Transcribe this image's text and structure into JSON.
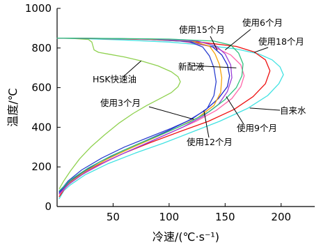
{
  "chart_data": {
    "type": "line",
    "title": "",
    "xlabel": "冷速/(℃·s⁻¹)",
    "ylabel": "温度/℃",
    "xlim": [
      0,
      230
    ],
    "ylim": [
      0,
      1000
    ],
    "x_ticks": [
      "50",
      "100",
      "150",
      "200"
    ],
    "y_ticks": [
      "0",
      "200",
      "400",
      "600",
      "800",
      "1000"
    ],
    "grid": false,
    "series": [
      {
        "name": "HSK快速油",
        "color": "#8fd14f",
        "points": [
          [
            2,
            90
          ],
          [
            6,
            130
          ],
          [
            12,
            180
          ],
          [
            20,
            240
          ],
          [
            30,
            300
          ],
          [
            42,
            360
          ],
          [
            55,
            420
          ],
          [
            68,
            470
          ],
          [
            80,
            510
          ],
          [
            92,
            545
          ],
          [
            102,
            575
          ],
          [
            108,
            605
          ],
          [
            110,
            630
          ],
          [
            108,
            655
          ],
          [
            102,
            680
          ],
          [
            90,
            710
          ],
          [
            75,
            735
          ],
          [
            60,
            755
          ],
          [
            45,
            770
          ],
          [
            37,
            778
          ],
          [
            33,
            790
          ],
          [
            32,
            810
          ],
          [
            31,
            830
          ],
          [
            28,
            843
          ],
          [
            15,
            848
          ],
          [
            0,
            850
          ]
        ]
      },
      {
        "name": "自来水",
        "color": "#41e2e2",
        "points": [
          [
            2,
            40
          ],
          [
            6,
            80
          ],
          [
            12,
            110
          ],
          [
            25,
            160
          ],
          [
            45,
            215
          ],
          [
            70,
            270
          ],
          [
            95,
            320
          ],
          [
            120,
            375
          ],
          [
            145,
            430
          ],
          [
            170,
            495
          ],
          [
            188,
            560
          ],
          [
            198,
            620
          ],
          [
            202,
            665
          ],
          [
            199,
            705
          ],
          [
            192,
            740
          ],
          [
            180,
            770
          ],
          [
            160,
            795
          ],
          [
            130,
            815
          ],
          [
            100,
            830
          ],
          [
            60,
            840
          ],
          [
            30,
            846
          ],
          [
            0,
            850
          ]
        ]
      },
      {
        "name": "使用18个月",
        "color": "#ee1111",
        "points": [
          [
            2,
            50
          ],
          [
            8,
            100
          ],
          [
            18,
            150
          ],
          [
            35,
            205
          ],
          [
            58,
            265
          ],
          [
            82,
            320
          ],
          [
            108,
            375
          ],
          [
            135,
            430
          ],
          [
            158,
            490
          ],
          [
            175,
            555
          ],
          [
            186,
            620
          ],
          [
            190,
            685
          ],
          [
            186,
            740
          ],
          [
            176,
            780
          ],
          [
            160,
            808
          ],
          [
            130,
            828
          ],
          [
            100,
            840
          ],
          [
            60,
            845
          ],
          [
            30,
            848
          ],
          [
            0,
            850
          ]
        ]
      },
      {
        "name": "使用9个月",
        "color": "#ff66aa",
        "points": [
          [
            2,
            60
          ],
          [
            10,
            110
          ],
          [
            22,
            160
          ],
          [
            40,
            215
          ],
          [
            60,
            270
          ],
          [
            82,
            325
          ],
          [
            104,
            380
          ],
          [
            124,
            430
          ],
          [
            142,
            485
          ],
          [
            156,
            545
          ],
          [
            164,
            605
          ],
          [
            167,
            660
          ],
          [
            164,
            715
          ],
          [
            155,
            765
          ],
          [
            140,
            805
          ],
          [
            110,
            835
          ],
          [
            70,
            845
          ],
          [
            35,
            848
          ],
          [
            0,
            850
          ]
        ]
      },
      {
        "name": "使用12个月",
        "color": "#1f2acc",
        "points": [
          [
            2,
            70
          ],
          [
            10,
            120
          ],
          [
            22,
            170
          ],
          [
            38,
            225
          ],
          [
            58,
            280
          ],
          [
            78,
            330
          ],
          [
            98,
            380
          ],
          [
            116,
            430
          ],
          [
            132,
            485
          ],
          [
            144,
            545
          ],
          [
            152,
            605
          ],
          [
            154,
            660
          ],
          [
            152,
            715
          ],
          [
            147,
            765
          ],
          [
            139,
            805
          ],
          [
            120,
            832
          ],
          [
            80,
            845
          ],
          [
            40,
            848
          ],
          [
            0,
            850
          ]
        ]
      },
      {
        "name": "使用3个月",
        "color": "#2b3fd0",
        "points": [
          [
            2,
            75
          ],
          [
            10,
            130
          ],
          [
            22,
            185
          ],
          [
            40,
            245
          ],
          [
            60,
            300
          ],
          [
            82,
            350
          ],
          [
            102,
            395
          ],
          [
            120,
            440
          ],
          [
            134,
            495
          ],
          [
            140,
            560
          ],
          [
            142,
            630
          ],
          [
            140,
            700
          ],
          [
            136,
            760
          ],
          [
            130,
            805
          ],
          [
            118,
            832
          ],
          [
            80,
            845
          ],
          [
            40,
            848
          ],
          [
            0,
            850
          ]
        ]
      },
      {
        "name": "使用15个月",
        "color": "#f5a30a",
        "points": [
          [
            3,
            70
          ],
          [
            12,
            125
          ],
          [
            26,
            180
          ],
          [
            45,
            240
          ],
          [
            66,
            295
          ],
          [
            88,
            350
          ],
          [
            108,
            400
          ],
          [
            126,
            450
          ],
          [
            140,
            510
          ],
          [
            146,
            575
          ],
          [
            147,
            650
          ],
          [
            145,
            715
          ],
          [
            141,
            770
          ],
          [
            136,
            810
          ],
          [
            120,
            835
          ],
          [
            80,
            845
          ],
          [
            40,
            848
          ],
          [
            0,
            850
          ]
        ]
      },
      {
        "name": "使用6个月",
        "color": "#9b3fd6",
        "points": [
          [
            2,
            65
          ],
          [
            12,
            120
          ],
          [
            26,
            175
          ],
          [
            46,
            235
          ],
          [
            68,
            290
          ],
          [
            90,
            345
          ],
          [
            112,
            400
          ],
          [
            130,
            455
          ],
          [
            144,
            515
          ],
          [
            152,
            580
          ],
          [
            156,
            650
          ],
          [
            155,
            715
          ],
          [
            150,
            770
          ],
          [
            142,
            810
          ],
          [
            125,
            835
          ],
          [
            85,
            845
          ],
          [
            40,
            848
          ],
          [
            0,
            850
          ]
        ]
      },
      {
        "name": "新配液",
        "color": "#2ec27e",
        "points": [
          [
            2,
            80
          ],
          [
            12,
            135
          ],
          [
            28,
            195
          ],
          [
            48,
            255
          ],
          [
            72,
            315
          ],
          [
            96,
            370
          ],
          [
            118,
            425
          ],
          [
            136,
            480
          ],
          [
            150,
            540
          ],
          [
            160,
            600
          ],
          [
            165,
            660
          ],
          [
            166,
            720
          ],
          [
            162,
            775
          ],
          [
            155,
            815
          ],
          [
            140,
            835
          ],
          [
            100,
            845
          ],
          [
            50,
            848
          ],
          [
            0,
            850
          ]
        ]
      }
    ],
    "annotations": [
      {
        "text": "使用15个月",
        "to": [
          143,
          790
        ]
      },
      {
        "text": "使用6个月",
        "to": [
          150,
          790
        ]
      },
      {
        "text": "使用18个月",
        "to": [
          176,
          778
        ]
      },
      {
        "text": "新配液",
        "to": [
          160,
          700
        ]
      },
      {
        "text": "HSK快速油",
        "to": [
          75,
          735
        ]
      },
      {
        "text": "使用3个月",
        "to": [
          122,
          440
        ]
      },
      {
        "text": "自来水",
        "to": [
          172,
          497
        ]
      },
      {
        "text": "使用9个月",
        "to": [
          151,
          555
        ]
      },
      {
        "text": "使用12个月",
        "to": [
          131,
          485
        ]
      }
    ]
  }
}
